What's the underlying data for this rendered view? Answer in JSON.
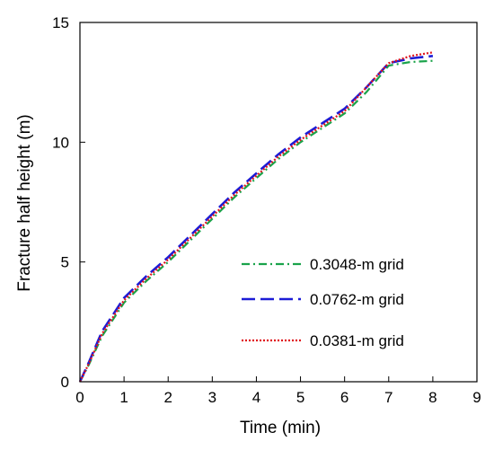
{
  "chart_data": {
    "type": "line",
    "xlabel": "Time (min)",
    "ylabel": "Fracture half height (m)",
    "xlim": [
      0,
      9
    ],
    "ylim": [
      0,
      15
    ],
    "xticks": [
      0,
      1,
      2,
      3,
      4,
      5,
      6,
      7,
      8,
      9
    ],
    "yticks": [
      0,
      5,
      10,
      15
    ],
    "grid": false,
    "legend": "lower-right",
    "series": [
      {
        "name": "0.3048-m grid",
        "color": "#1aa34a",
        "dash": "dash-dot",
        "x": [
          0,
          0.2,
          0.5,
          1,
          1.5,
          2,
          2.5,
          3,
          3.5,
          4,
          4.5,
          5,
          5.5,
          6,
          6.5,
          7,
          7.5,
          8
        ],
        "y": [
          0,
          0.7,
          1.9,
          3.3,
          4.2,
          5.0,
          5.9,
          6.8,
          7.7,
          8.5,
          9.3,
          10.0,
          10.6,
          11.2,
          12.1,
          13.2,
          13.35,
          13.4
        ]
      },
      {
        "name": "0.0762-m grid",
        "color": "#1c1cd6",
        "dash": "long-dash",
        "x": [
          0,
          0.2,
          0.5,
          1,
          1.5,
          2,
          2.5,
          3,
          3.5,
          4,
          4.5,
          5,
          5.5,
          6,
          6.5,
          7,
          7.5,
          8
        ],
        "y": [
          0,
          0.8,
          2.1,
          3.5,
          4.4,
          5.2,
          6.1,
          7.0,
          7.9,
          8.7,
          9.5,
          10.2,
          10.8,
          11.4,
          12.3,
          13.3,
          13.5,
          13.6
        ]
      },
      {
        "name": "0.0381-m grid",
        "color": "#e0141c",
        "dash": "dotted",
        "x": [
          0,
          0.2,
          0.5,
          1,
          1.5,
          2,
          2.5,
          3,
          3.5,
          4,
          4.5,
          5,
          5.5,
          6,
          6.5,
          7,
          7.5,
          8
        ],
        "y": [
          0,
          0.75,
          2.0,
          3.4,
          4.3,
          5.1,
          6.0,
          6.9,
          7.8,
          8.6,
          9.4,
          10.1,
          10.7,
          11.3,
          12.3,
          13.3,
          13.6,
          13.75
        ]
      }
    ]
  }
}
